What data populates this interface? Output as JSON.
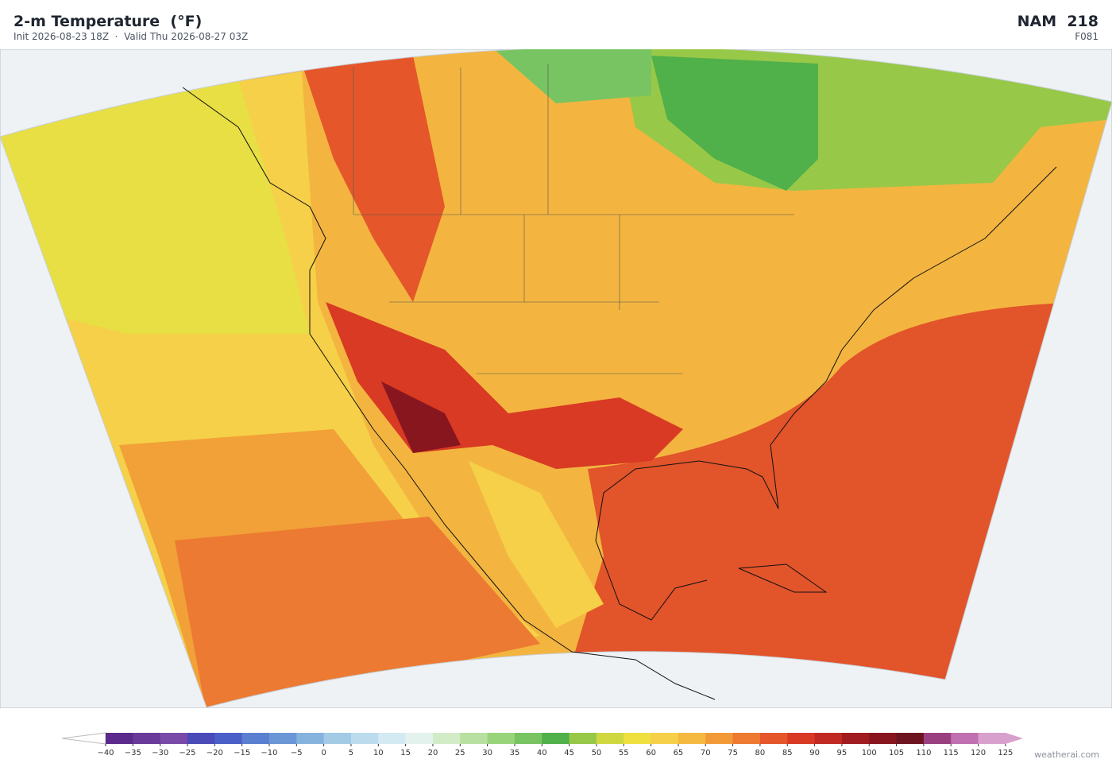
{
  "header": {
    "title": "2-m Temperature  (°F)",
    "subtitle": "Init 2026-08-23 18Z  ·  Valid Thu 2026-08-27 03Z",
    "model": "NAM  218",
    "forecast_hour": "F081"
  },
  "colorbar": {
    "ticks": [
      {
        "value": -40,
        "label": "−40"
      },
      {
        "value": -35,
        "label": "−35"
      },
      {
        "value": -30,
        "label": "−30"
      },
      {
        "value": -25,
        "label": "−25"
      },
      {
        "value": -20,
        "label": "−20"
      },
      {
        "value": -15,
        "label": "−15"
      },
      {
        "value": -10,
        "label": "−10"
      },
      {
        "value": -5,
        "label": "−5"
      },
      0,
      5,
      10,
      15,
      20,
      25,
      30,
      35,
      40,
      45,
      50,
      55,
      60,
      65,
      70,
      75,
      80,
      85,
      90,
      95,
      100,
      105,
      110,
      115,
      120,
      125
    ],
    "colors": [
      "#5b2a8c",
      "#6a3a9a",
      "#7a4aa8",
      "#4a4ab8",
      "#4a5fc8",
      "#5a7fd0",
      "#6a96d6",
      "#86b3de",
      "#a3cbe6",
      "#bcdcee",
      "#d4eaf2",
      "#e4f2ee",
      "#d2ecc8",
      "#b8e0a0",
      "#98d47a",
      "#78c462",
      "#50b04a",
      "#98c848",
      "#cfd840",
      "#efe040",
      "#f5d048",
      "#f5b840",
      "#f29a38",
      "#ee7a32",
      "#e5562a",
      "#d83a24",
      "#c02a22",
      "#a01c20",
      "#88161e",
      "#6e1420",
      "#9a4080",
      "#c070b0",
      "#d8a0cc"
    ],
    "under_color": "#ffffff",
    "over_color": "#d8a0cc"
  },
  "credit": "weatherai.com"
}
